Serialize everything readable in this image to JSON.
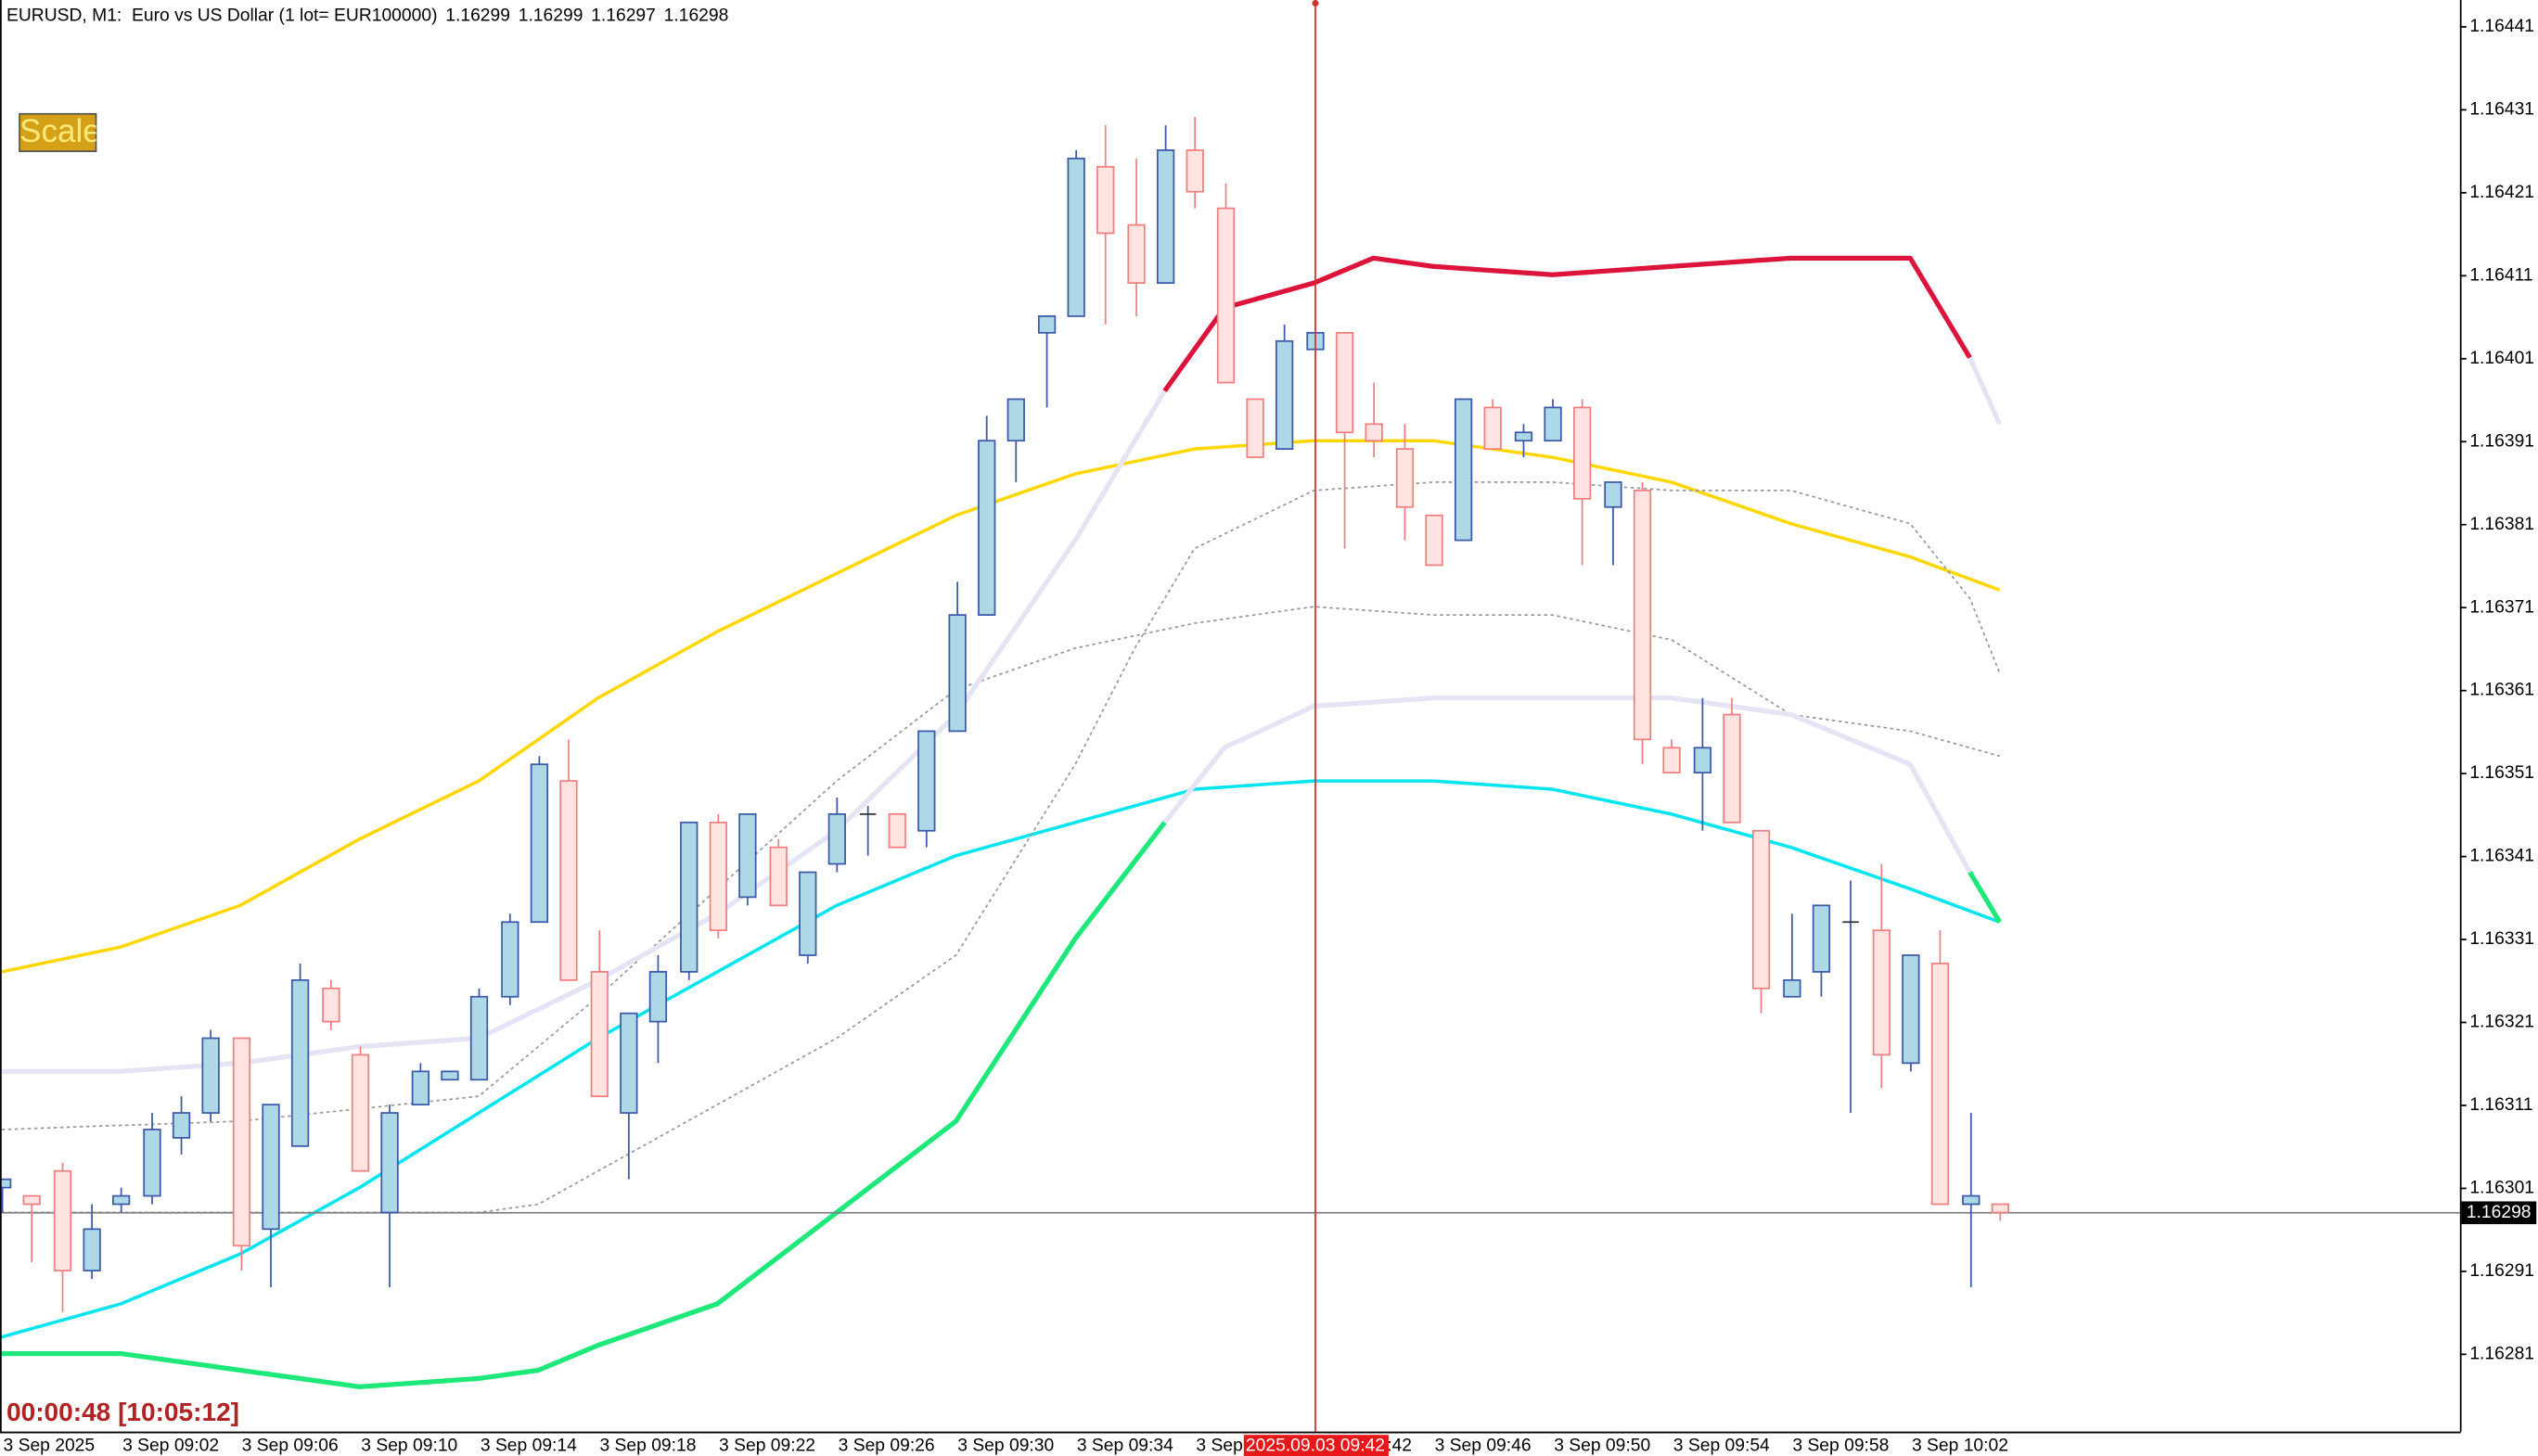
{
  "chart_data": {
    "type": "candlestick",
    "symbol_info": "EURUSD, M1:  Euro vs US Dollar (1 lot= EUR100000)",
    "scale_button": "Scale",
    "timer": "00:00:48 [10:05:12]",
    "crosshair_label": "2025.09.03 09:42",
    "bid": 1.16298,
    "categories": [
      "3 Sep 2025",
      null,
      null,
      null,
      "3 Sep 09:02",
      null,
      null,
      null,
      "3 Sep 09:06",
      null,
      null,
      null,
      "3 Sep 09:10",
      null,
      null,
      null,
      "3 Sep 09:14",
      null,
      null,
      null,
      "3 Sep 09:18",
      null,
      null,
      null,
      "3 Sep 09:22",
      null,
      null,
      null,
      "3 Sep 09:26",
      null,
      null,
      null,
      "3 Sep 09:30",
      null,
      null,
      null,
      "3 Sep 09:34",
      null,
      null,
      null,
      "3 Sep 09:38",
      null,
      null,
      null,
      "3 Sep 09:42",
      null,
      null,
      null,
      "3 Sep 09:46",
      null,
      null,
      null,
      "3 Sep 09:50",
      null,
      null,
      null,
      "3 Sep 09:54",
      null,
      null,
      null,
      "3 Sep 09:58",
      null,
      null,
      null,
      "3 Sep 10:02",
      null,
      null,
      null
    ],
    "open": [
      1.16301,
      1.163,
      1.16303,
      1.16291,
      1.16299,
      1.163,
      1.16307,
      1.1631,
      1.16319,
      1.16296,
      1.16306,
      1.16325,
      1.16317,
      1.16298,
      1.16311,
      1.16314,
      1.16314,
      1.16324,
      1.16333,
      1.1635,
      1.16327,
      1.1631,
      1.16321,
      1.16327,
      1.16345,
      1.16336,
      1.16342,
      1.16329,
      1.1634,
      1.16346,
      1.16346,
      1.16344,
      1.16356,
      1.1637,
      1.16391,
      1.16404,
      1.16406,
      1.16424,
      1.16417,
      1.1641,
      1.16426,
      1.16419,
      1.16396,
      1.1639,
      1.16402,
      1.16404,
      1.16393,
      1.1639,
      1.16382,
      1.16379,
      1.16395,
      1.16391,
      1.16391,
      1.16395,
      1.16383,
      1.16385,
      1.16354,
      1.16351,
      1.16358,
      1.16344,
      1.16324,
      1.16327,
      1.16333,
      1.16332,
      1.16316,
      1.16328,
      1.16299,
      1.16299
    ],
    "high": [
      1.16302,
      1.163,
      1.16304,
      1.16299,
      1.16301,
      1.1631,
      1.16312,
      1.1632,
      1.16319,
      1.16311,
      1.16328,
      1.16326,
      1.16318,
      1.16311,
      1.16316,
      1.16315,
      1.16325,
      1.16334,
      1.16353,
      1.16355,
      1.16332,
      1.16322,
      1.16329,
      1.16345,
      1.16346,
      1.16346,
      1.16343,
      1.16339,
      1.16348,
      1.16347,
      1.16346,
      1.16356,
      1.16374,
      1.16394,
      1.16396,
      1.16406,
      1.16426,
      1.16429,
      1.16425,
      1.16429,
      1.1643,
      1.16422,
      1.16396,
      1.16405,
      1.16404,
      1.16404,
      1.16398,
      1.16393,
      1.16382,
      1.16396,
      1.16396,
      1.16393,
      1.16396,
      1.16396,
      1.16386,
      1.16386,
      1.16355,
      1.1636,
      1.1636,
      1.16344,
      1.16334,
      1.16335,
      1.16338,
      1.1634,
      1.16329,
      1.16332,
      1.1631,
      1.16299
    ],
    "low": [
      1.16298,
      1.16292,
      1.16286,
      1.1629,
      1.16298,
      1.16299,
      1.16305,
      1.16309,
      1.16291,
      1.16289,
      1.16306,
      1.1632,
      1.16303,
      1.16289,
      1.16311,
      1.16314,
      1.16314,
      1.16323,
      1.16333,
      1.16326,
      1.16312,
      1.16302,
      1.16316,
      1.16326,
      1.16331,
      1.16335,
      1.16335,
      1.16328,
      1.16339,
      1.16341,
      1.16342,
      1.16342,
      1.16356,
      1.1637,
      1.16386,
      1.16395,
      1.16406,
      1.16405,
      1.16406,
      1.1641,
      1.16419,
      1.16398,
      1.16389,
      1.1639,
      1.16402,
      1.16378,
      1.16389,
      1.16379,
      1.16376,
      1.16379,
      1.1639,
      1.16389,
      1.16391,
      1.16376,
      1.16376,
      1.16352,
      1.16351,
      1.16344,
      1.16345,
      1.16322,
      1.16324,
      1.16324,
      1.1631,
      1.16313,
      1.16315,
      1.16299,
      1.16289,
      1.16297
    ],
    "close": [
      1.16302,
      1.16299,
      1.16291,
      1.16296,
      1.163,
      1.16308,
      1.1631,
      1.16319,
      1.16294,
      1.16311,
      1.16326,
      1.16321,
      1.16303,
      1.1631,
      1.16315,
      1.16315,
      1.16324,
      1.16333,
      1.16352,
      1.16326,
      1.16312,
      1.16322,
      1.16327,
      1.16345,
      1.16332,
      1.16346,
      1.16335,
      1.16339,
      1.16346,
      1.16346,
      1.16342,
      1.16356,
      1.1637,
      1.16391,
      1.16396,
      1.16406,
      1.16425,
      1.16416,
      1.1641,
      1.16426,
      1.16421,
      1.16398,
      1.16389,
      1.16403,
      1.16404,
      1.16392,
      1.16391,
      1.16383,
      1.16376,
      1.16396,
      1.1639,
      1.16392,
      1.16395,
      1.16384,
      1.16386,
      1.16355,
      1.16351,
      1.16354,
      1.16345,
      1.16325,
      1.16326,
      1.16335,
      1.16333,
      1.16317,
      1.16329,
      1.16299,
      1.163,
      1.16298
    ],
    "up_color": "#3c5aa8",
    "up_fill": "#add8e6",
    "down_color": "#f08080",
    "down_fill": "#ffe4e1",
    "lines": [
      {
        "color": "#ffd700",
        "width": 2,
        "x": [
          0,
          4,
          8,
          12,
          16,
          20,
          24,
          28,
          32,
          36,
          40,
          44,
          48,
          52,
          56,
          60,
          64,
          67
        ],
        "values": [
          1.16327,
          1.1633,
          1.16335,
          1.16343,
          1.1635,
          1.1636,
          1.16368,
          1.16375,
          1.16382,
          1.16387,
          1.1639,
          1.16391,
          1.16391,
          1.16389,
          1.16386,
          1.16381,
          1.16377,
          1.16373
        ]
      },
      {
        "color": "#00e5ee",
        "width": 2,
        "x": [
          0,
          4,
          8,
          12,
          16,
          20,
          24,
          28,
          32,
          36,
          40,
          44,
          48,
          52,
          56,
          60,
          64,
          67
        ],
        "values": [
          1.16283,
          1.16287,
          1.16293,
          1.16301,
          1.1631,
          1.16319,
          1.16327,
          1.16335,
          1.16341,
          1.16345,
          1.16349,
          1.1635,
          1.1635,
          1.16349,
          1.16346,
          1.16342,
          1.16337,
          1.16333
        ]
      },
      {
        "color": "#999999",
        "width": 1,
        "dashed": true,
        "x": [
          0,
          8,
          16,
          20,
          24,
          28,
          32,
          36,
          40,
          44,
          48,
          52,
          56,
          60,
          64,
          67
        ],
        "values": [
          1.16308,
          1.16309,
          1.16312,
          1.16324,
          1.16337,
          1.1635,
          1.16361,
          1.16366,
          1.16369,
          1.16371,
          1.1637,
          1.1637,
          1.16367,
          1.16358,
          1.16356,
          1.16353
        ]
      },
      {
        "color": "#999999",
        "width": 1,
        "dashed": true,
        "x": [
          0,
          16,
          18,
          20,
          24,
          28,
          32,
          36,
          38,
          40,
          44,
          48,
          52,
          56,
          60,
          64,
          66,
          67
        ],
        "values": [
          1.16298,
          1.16298,
          1.16299,
          1.16303,
          1.16311,
          1.16319,
          1.16329,
          1.16352,
          1.16366,
          1.16378,
          1.16385,
          1.16386,
          1.16386,
          1.16385,
          1.16385,
          1.16381,
          1.16372,
          1.16363
        ]
      },
      {
        "color": "#e4e4f4",
        "width": 3,
        "x": [
          0,
          4,
          8,
          12,
          16,
          20,
          24,
          28,
          32,
          36,
          39
        ],
        "values": [
          1.16315,
          1.16315,
          1.16316,
          1.16318,
          1.16319,
          1.16326,
          1.16334,
          1.16344,
          1.16358,
          1.16379,
          1.16397
        ]
      },
      {
        "color": "#dc143c",
        "width": 3,
        "x": [
          39,
          41,
          44,
          46,
          48,
          52,
          56,
          60,
          64,
          66
        ],
        "values": [
          1.16397,
          1.16407,
          1.1641,
          1.16413,
          1.16412,
          1.16411,
          1.16412,
          1.16413,
          1.16413,
          1.16401
        ]
      },
      {
        "color": "#e4e4f4",
        "width": 3,
        "x": [
          66,
          67
        ],
        "values": [
          1.16401,
          1.16393
        ]
      },
      {
        "color": "#1ee87a",
        "width": 3,
        "x": [
          0,
          4,
          8,
          12,
          16,
          18,
          20,
          24,
          28,
          32,
          36,
          39
        ],
        "values": [
          1.16281,
          1.16281,
          1.16279,
          1.16277,
          1.16278,
          1.16279,
          1.16282,
          1.16287,
          1.16298,
          1.16309,
          1.16331,
          1.16345
        ]
      },
      {
        "color": "#e4e4f4",
        "width": 3,
        "x": [
          39,
          41,
          44,
          48,
          52,
          56,
          60,
          64,
          66
        ],
        "values": [
          1.16345,
          1.16354,
          1.16359,
          1.1636,
          1.1636,
          1.1636,
          1.16358,
          1.16352,
          1.16339
        ]
      },
      {
        "color": "#1ee87a",
        "width": 3,
        "x": [
          66,
          67
        ],
        "values": [
          1.16339,
          1.16333
        ]
      }
    ],
    "ylim": [
      1.162716,
      1.164441
    ],
    "yticks": [
      1.16441,
      1.16431,
      1.16421,
      1.16411,
      1.16401,
      1.16391,
      1.16381,
      1.16371,
      1.16361,
      1.16351,
      1.16341,
      1.16331,
      1.16321,
      1.16311,
      1.16301,
      1.16291,
      1.16281
    ],
    "grid": false
  }
}
